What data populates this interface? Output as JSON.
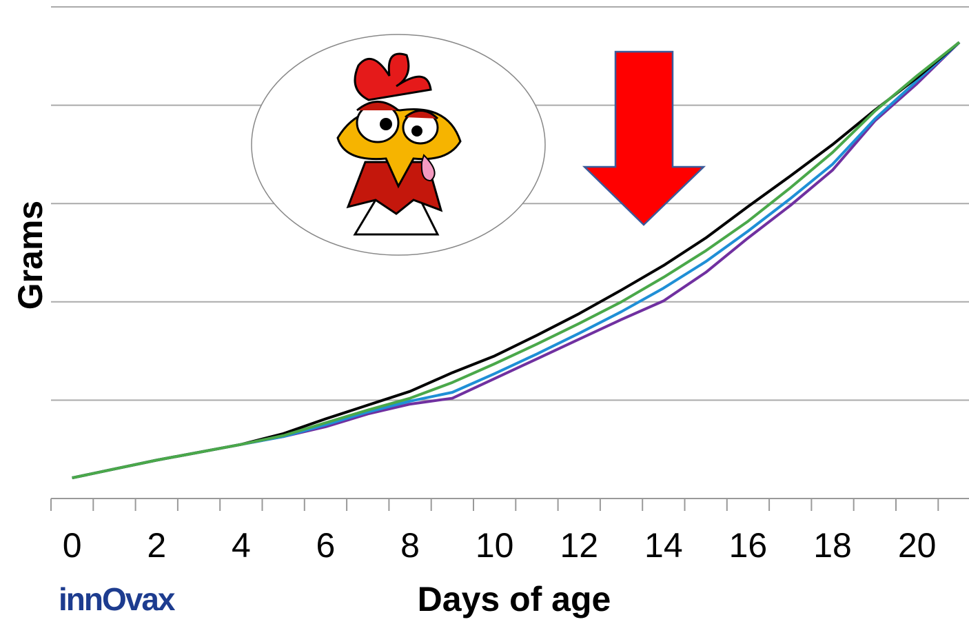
{
  "chart_data": {
    "type": "line",
    "x_label": "Days of age",
    "y_label": "Grams",
    "logo": "innOvax",
    "categories": [
      "0",
      null,
      "2",
      null,
      "4",
      null,
      "6",
      null,
      "8",
      null,
      "10",
      null,
      "12",
      null,
      "14",
      null,
      "16",
      null,
      "18",
      null,
      "20",
      null
    ],
    "ylim": [
      0,
      5
    ],
    "yticks": [
      0,
      1,
      2,
      3,
      4,
      5
    ],
    "grid": true,
    "series": [
      {
        "color": "#7030a0",
        "values": [
          0.21,
          0.3,
          0.39,
          0.47,
          0.55,
          0.63,
          0.73,
          0.86,
          0.96,
          1.02,
          1.22,
          1.42,
          1.62,
          1.82,
          2.01,
          2.3,
          2.65,
          2.98,
          3.34,
          3.84,
          4.22,
          4.64
        ]
      },
      {
        "color": "#1f8fd6",
        "values": [
          0.21,
          0.3,
          0.39,
          0.47,
          0.55,
          0.63,
          0.75,
          0.88,
          0.99,
          1.08,
          1.27,
          1.47,
          1.68,
          1.9,
          2.14,
          2.41,
          2.72,
          3.05,
          3.4,
          3.86,
          4.25,
          4.64
        ]
      },
      {
        "color": "#000000",
        "values": [
          0.21,
          0.3,
          0.39,
          0.47,
          0.55,
          0.66,
          0.81,
          0.95,
          1.09,
          1.28,
          1.45,
          1.66,
          1.88,
          2.12,
          2.37,
          2.65,
          2.97,
          3.28,
          3.6,
          3.95,
          4.28,
          4.64
        ]
      },
      {
        "color": "#4aa84a",
        "values": [
          0.21,
          0.3,
          0.39,
          0.47,
          0.55,
          0.64,
          0.77,
          0.9,
          1.02,
          1.18,
          1.37,
          1.57,
          1.78,
          2.0,
          2.25,
          2.52,
          2.82,
          3.16,
          3.52,
          3.94,
          4.3,
          4.64
        ]
      }
    ]
  }
}
